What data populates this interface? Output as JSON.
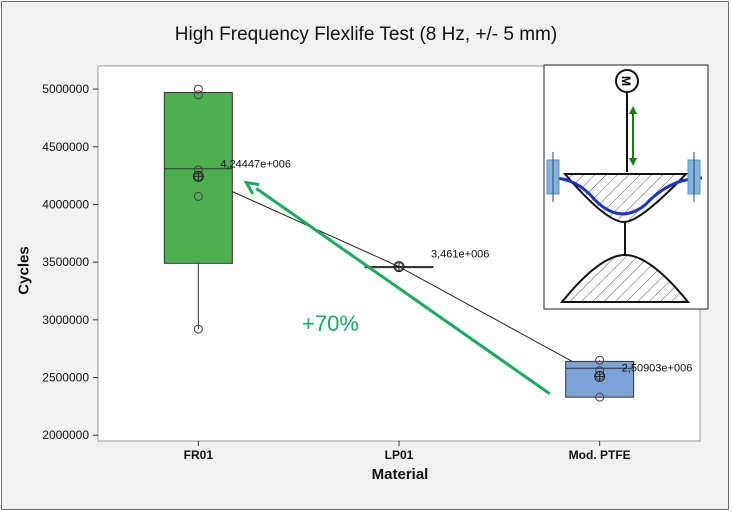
{
  "chart_data": {
    "type": "box",
    "title": "High Frequency Flexlife Test (8 Hz, +/- 5 mm)",
    "xlabel": "Material",
    "ylabel": "Cycles",
    "ylim": [
      1950000,
      5200000
    ],
    "yticks": [
      2000000,
      2500000,
      3000000,
      3500000,
      4000000,
      4500000,
      5000000
    ],
    "ytick_labels": [
      "2000000",
      "2500000",
      "3000000",
      "3500000",
      "4000000",
      "4500000",
      "5000000"
    ],
    "categories": [
      "FR01",
      "LP01",
      "Mod. PTFE"
    ],
    "boxes": [
      {
        "category": "FR01",
        "q1": 3490000,
        "median": 4310000,
        "q3": 4970000,
        "whisker_low": 2920000,
        "whisker_high": 4970000,
        "mean": 4244470,
        "mean_label": "4,24447e+006",
        "points": [
          5000000,
          4950000,
          4300000,
          4240000,
          4070000,
          2920000
        ],
        "color": "#4caf50"
      },
      {
        "category": "LP01",
        "q1": 3461000,
        "median": 3461000,
        "q3": 3461000,
        "whisker_low": 3461000,
        "whisker_high": 3461000,
        "mean": 3461000,
        "mean_label": "3,461e+006",
        "points": [
          3461000
        ],
        "color": "#4caf50"
      },
      {
        "category": "Mod. PTFE",
        "q1": 2330000,
        "median": 2580000,
        "q3": 2640000,
        "whisker_low": 2330000,
        "whisker_high": 2650000,
        "mean": 2509030,
        "mean_label": "2,50903e+006",
        "points": [
          2650000,
          2560000,
          2520000,
          2330000
        ],
        "color": "#7ba3d8"
      }
    ],
    "annotation": {
      "text": "+70%",
      "color": "#1aab5e"
    }
  }
}
